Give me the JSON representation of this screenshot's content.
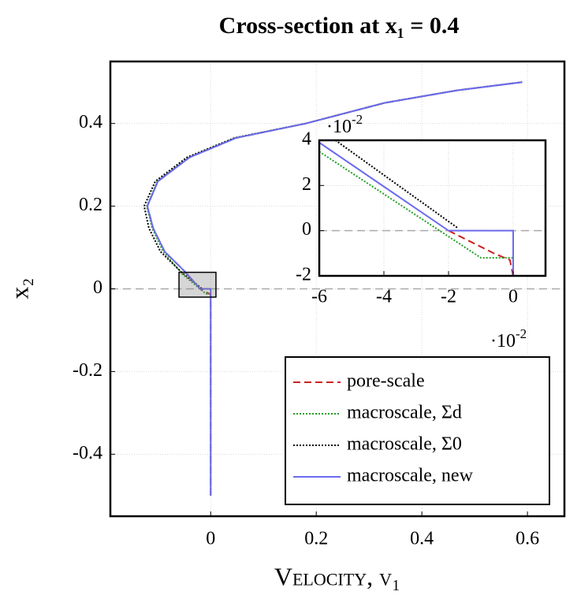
{
  "chart_data": [
    {
      "type": "line",
      "title": "Cross-section at x₁ = 0.4",
      "x_label": "Velocity, v₁",
      "y_label": "x₂",
      "xlim": [
        -0.19,
        0.67
      ],
      "ylim": [
        -0.55,
        0.55
      ],
      "xticks": [
        0,
        0.2,
        0.4,
        0.6
      ],
      "yticks": [
        -0.4,
        -0.2,
        0,
        0.2,
        0.4
      ],
      "grid": true,
      "zero_line": true,
      "legend": "lower right",
      "series": [
        {
          "name": "pore-scale",
          "color": "#cc2222",
          "style": "dashed",
          "x": [
            0,
            0,
            -0.0007,
            -0.0057,
            -0.02,
            -0.049,
            -0.087,
            -0.109,
            -0.12,
            -0.1,
            -0.04,
            0.048,
            0.18,
            0.33,
            0.466,
            0.59
          ],
          "values": [
            -0.5,
            -0.02,
            -0.013,
            -0.01,
            0,
            0.042,
            0.09,
            0.147,
            0.2,
            0.26,
            0.318,
            0.365,
            0.4,
            0.45,
            0.48,
            0.5
          ]
        },
        {
          "name": "macroscale, Σd",
          "color": "#22a022",
          "style": "dotted",
          "x": [
            0,
            0,
            -0.009,
            -0.053,
            -0.09,
            -0.111,
            -0.121,
            -0.101,
            -0.041,
            0.047,
            0.18,
            0.33,
            0.466,
            0.59
          ],
          "values": [
            -0.5,
            -0.012,
            -0.012,
            0.035,
            0.09,
            0.147,
            0.2,
            0.26,
            0.318,
            0.365,
            0.4,
            0.45,
            0.48,
            0.5
          ]
        },
        {
          "name": "macroscale, Σ0",
          "color": "#000000",
          "style": "dotted",
          "x": [
            -0.017,
            -0.055,
            -0.095,
            -0.117,
            -0.126,
            -0.105,
            -0.045,
            0.045,
            0.18,
            0.33,
            0.466,
            0.59
          ],
          "values": [
            0.001,
            0.04,
            0.09,
            0.147,
            0.2,
            0.26,
            0.318,
            0.365,
            0.4,
            0.45,
            0.48,
            0.5
          ]
        },
        {
          "name": "macroscale, new",
          "color": "#6b6bf0",
          "style": "solid",
          "x": [
            0,
            0,
            -0.02,
            -0.049,
            -0.087,
            -0.109,
            -0.12,
            -0.1,
            -0.04,
            0.048,
            0.18,
            0.33,
            0.466,
            0.59
          ],
          "values": [
            -0.5,
            0,
            0,
            0.042,
            0.09,
            0.147,
            0.2,
            0.26,
            0.318,
            0.365,
            0.4,
            0.45,
            0.48,
            0.5
          ]
        }
      ]
    },
    {
      "type": "line",
      "x_multiplier": {
        "base": "·10",
        "exponent": -2
      },
      "y_multiplier": {
        "base": "·10",
        "exponent": -2
      },
      "xlim": [
        -6,
        1
      ],
      "ylim": [
        -2,
        4
      ],
      "xticks": [
        -6,
        -4,
        -2,
        0
      ],
      "yticks": [
        -2,
        0,
        2,
        4
      ],
      "grid": true,
      "zero_line": true,
      "series": [
        {
          "color": "#cc2222",
          "style": "dashed",
          "x": [
            -2,
            -0.6,
            -0.1,
            0
          ],
          "values": [
            0,
            -1.0,
            -1.3,
            -2
          ]
        },
        {
          "color": "#22a022",
          "style": "dotted",
          "x": [
            -6,
            -1,
            0,
            0
          ],
          "values": [
            3.5,
            -1.2,
            -1.2,
            -2
          ]
        },
        {
          "color": "#000000",
          "style": "dotted",
          "x": [
            -5.5,
            -1.7
          ],
          "values": [
            4,
            0.1
          ]
        },
        {
          "color": "#6b6bf0",
          "style": "solid",
          "x": [
            -6,
            -2,
            0,
            0
          ],
          "values": [
            3.9,
            0,
            0,
            -2
          ]
        }
      ]
    }
  ]
}
